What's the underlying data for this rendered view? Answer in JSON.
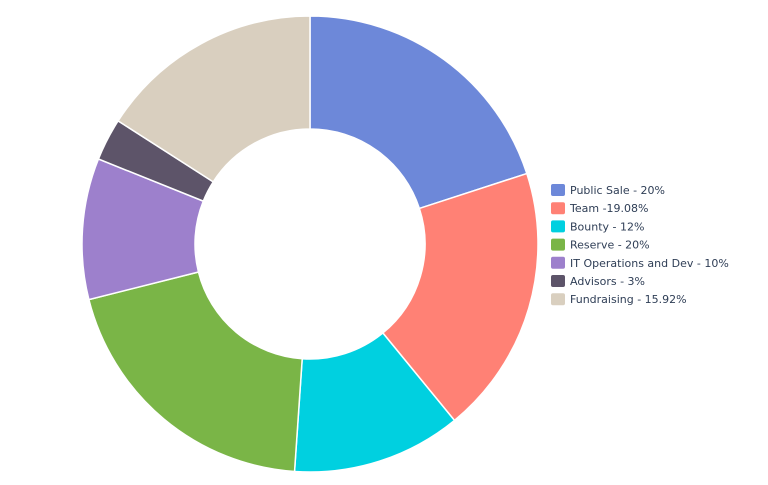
{
  "chart_data": {
    "type": "donut",
    "categories": [
      "Public Sale - 20%",
      "Team -19.08%",
      "Bounty - 12%",
      "Reserve - 20%",
      "IT Operations and Dev - 10%",
      "Advisors - 3%",
      "Fundraising - 15.92%"
    ],
    "values": [
      20,
      19.08,
      12,
      20,
      10,
      3,
      15.92
    ],
    "colors": [
      "#6d88d9",
      "#ff8175",
      "#00d0e0",
      "#7ab547",
      "#9d80cc",
      "#5d5469",
      "#d9cfbf"
    ],
    "legend": "right"
  }
}
